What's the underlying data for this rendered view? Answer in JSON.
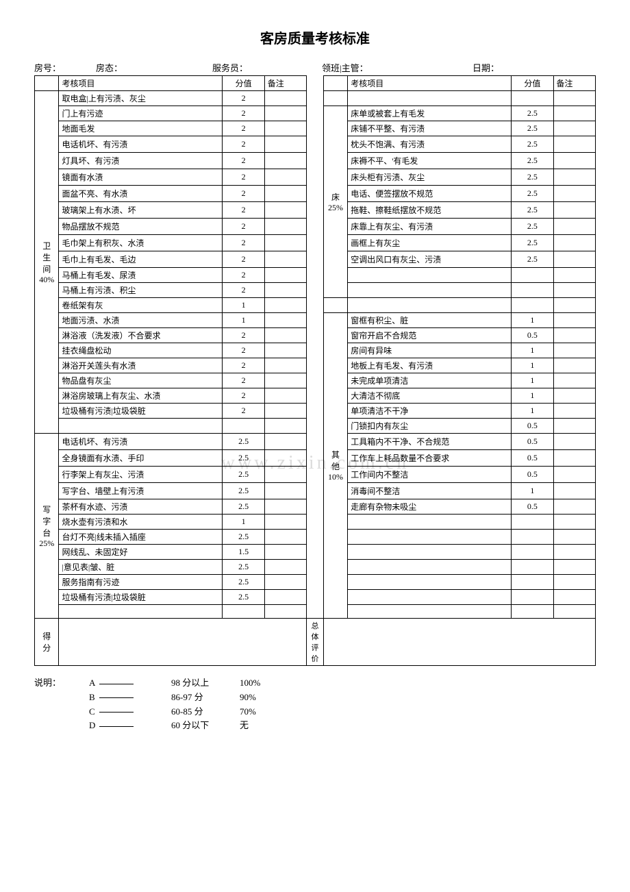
{
  "title": "客房质量考核标准",
  "header": {
    "room_no": "房号：",
    "room_status": "房态：",
    "attendant": "服务员：",
    "supervisor": "领班|主管：",
    "date": "日期："
  },
  "col_headers": {
    "item": "考核项目",
    "score": "分值",
    "note": "备注"
  },
  "categories": {
    "bathroom": {
      "label": "卫生间40%"
    },
    "desk": {
      "label": "写字台25%"
    },
    "bed": {
      "label": "床25%"
    },
    "other": {
      "label": "其他10%"
    }
  },
  "left_rows": [
    {
      "item": "取电盒|上有污渍、灰尘",
      "score": "2"
    },
    {
      "item": "门上有污迹",
      "score": "2"
    },
    {
      "item": "地面毛发",
      "score": "2"
    },
    {
      "item": "电话机坏、有污渍",
      "score": "2"
    },
    {
      "item": "灯具坏、有污渍",
      "score": "2"
    },
    {
      "item": "镜面有水渍",
      "score": "2"
    },
    {
      "item": "面盆不亮、有水渍",
      "score": "2"
    },
    {
      "item": "玻璃架上有水渍、坏",
      "score": "2"
    },
    {
      "item": "物品摆放不规范",
      "score": "2"
    },
    {
      "item": "毛巾架上有积灰、水渍",
      "score": "2"
    },
    {
      "item": "毛巾上有毛发、毛边",
      "score": "2"
    },
    {
      "item": "马桶上有毛发、尿渍",
      "score": "2"
    },
    {
      "item": "马桶上有污渍、积尘",
      "score": "2"
    },
    {
      "item": "卷纸架有灰",
      "score": "1"
    },
    {
      "item": "地面污渍、水渍",
      "score": "1"
    },
    {
      "item": "淋浴液（洗发液）不合要求",
      "score": "2"
    },
    {
      "item": "挂衣绳盘松动",
      "score": "2"
    },
    {
      "item": "淋浴开关莲头有水渍",
      "score": "2"
    },
    {
      "item": "物品盘有灰尘",
      "score": "2"
    },
    {
      "item": "淋浴房玻璃上有灰尘、水渍",
      "score": "2"
    },
    {
      "item": "垃圾桶有污渍|垃圾袋脏",
      "score": "2"
    },
    {
      "item": "",
      "score": ""
    },
    {
      "item": "电话机坏、有污渍",
      "score": "2.5"
    },
    {
      "item": "全身镜面有水渍、手印",
      "score": "2.5"
    },
    {
      "item": "行李架上有灰尘、污渍",
      "score": "2.5"
    },
    {
      "item": "写字台、墙壁上有污渍",
      "score": "2.5"
    },
    {
      "item": "茶杯有水迹、污渍",
      "score": "2.5"
    },
    {
      "item": "烧水壶有污渍和水",
      "score": "1"
    },
    {
      "item": "台灯不亮|线未插入插座",
      "score": "2.5"
    },
    {
      "item": "网线乱、未固定好",
      "score": "1.5"
    },
    {
      "item": "|意见表|皱、脏",
      "score": "2.5"
    },
    {
      "item": "服务指南有污迹",
      "score": "2.5"
    },
    {
      "item": "垃圾桶有污渍|垃圾袋脏",
      "score": "2.5"
    },
    {
      "item": "",
      "score": ""
    }
  ],
  "right_rows": [
    {
      "item": "",
      "score": ""
    },
    {
      "item": "床单或被套上有毛发",
      "score": "2.5"
    },
    {
      "item": "床铺不平整、有污渍",
      "score": "2.5"
    },
    {
      "item": "枕头不饱满、有污渍",
      "score": "2.5"
    },
    {
      "item": "床褥不平、'有毛发",
      "score": "2.5"
    },
    {
      "item": "床头柜有污渍、灰尘",
      "score": "2.5"
    },
    {
      "item": "电话、便签摆放不规范",
      "score": "2.5"
    },
    {
      "item": "拖鞋、擦鞋纸摆放不规范",
      "score": "2.5"
    },
    {
      "item": "床靠上有灰尘、有污渍",
      "score": "2.5"
    },
    {
      "item": "画框上有灰尘",
      "score": "2.5"
    },
    {
      "item": "空调出风口有灰尘、污渍",
      "score": "2.5"
    },
    {
      "item": "",
      "score": ""
    },
    {
      "item": "",
      "score": ""
    },
    {
      "item": "",
      "score": ""
    },
    {
      "item": "窗框有积尘、脏",
      "score": "1"
    },
    {
      "item": "窗帘开启不合规范",
      "score": "0.5"
    },
    {
      "item": "房间有异味",
      "score": "1"
    },
    {
      "item": "地板上有毛发、有污渍",
      "score": "1"
    },
    {
      "item": "未完成单项清洁",
      "score": "1"
    },
    {
      "item": "大清洁不彻底",
      "score": "1"
    },
    {
      "item": "单项清洁不干净",
      "score": "1"
    },
    {
      "item": "门锁扣内有灰尘",
      "score": "0.5"
    },
    {
      "item": "工具箱内不干净、不合规范",
      "score": "0.5"
    },
    {
      "item": "工作车上耗品数量不合要求",
      "score": "0.5"
    },
    {
      "item": "工作间内不整洁",
      "score": "0.5"
    },
    {
      "item": "消毒间不整洁",
      "score": "1"
    },
    {
      "item": "走廊有杂物未吸尘",
      "score": "0.5"
    },
    {
      "item": "",
      "score": ""
    },
    {
      "item": "",
      "score": ""
    },
    {
      "item": "",
      "score": ""
    },
    {
      "item": "",
      "score": ""
    },
    {
      "item": "",
      "score": ""
    },
    {
      "item": "",
      "score": ""
    },
    {
      "item": "",
      "score": ""
    }
  ],
  "footer_row": {
    "score_label": "得分",
    "eval_label": "总体评价"
  },
  "legend": {
    "label": "说明：",
    "grades": [
      {
        "g": "A",
        "range": "98 分以上",
        "pct": "100%"
      },
      {
        "g": "B",
        "range": "86-97 分",
        "pct": "90%"
      },
      {
        "g": "C",
        "range": "60-85 分",
        "pct": "70%"
      },
      {
        "g": "D",
        "range": "60 分以下",
        "pct": "无"
      }
    ]
  },
  "watermark": "www.zixin.com.cn"
}
